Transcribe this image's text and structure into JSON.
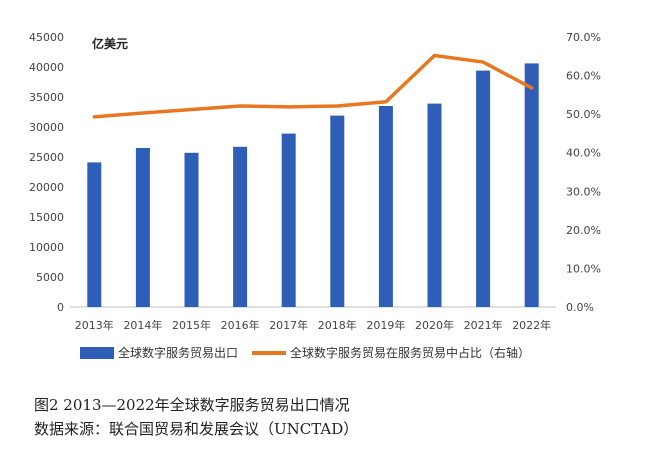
{
  "chart_data": {
    "type": "bar",
    "unit_label": "亿美元",
    "categories": [
      "2013年",
      "2014年",
      "2015年",
      "2016年",
      "2017年",
      "2018年",
      "2019年",
      "2020年",
      "2021年",
      "2022年"
    ],
    "series": [
      {
        "name": "全球数字服务贸易出口",
        "type": "bar",
        "axis": "left",
        "color": "#2E5EB8",
        "values": [
          24100,
          26500,
          25700,
          26700,
          28900,
          31900,
          33500,
          33900,
          39400,
          40600
        ]
      },
      {
        "name": "全球数字服务贸易在服务贸易中占比（右轴）",
        "type": "line",
        "axis": "right",
        "color": "#E87722",
        "values": [
          49.3,
          50.3,
          51.2,
          52.1,
          51.9,
          52.1,
          53.2,
          65.2,
          63.5,
          56.8
        ]
      }
    ],
    "y_left": {
      "range": [
        0,
        45000
      ],
      "ticks": [
        "0",
        "5000",
        "10000",
        "15000",
        "20000",
        "25000",
        "30000",
        "35000",
        "40000",
        "45000"
      ]
    },
    "y_right": {
      "range": [
        0,
        70
      ],
      "ticks": [
        "0.0%",
        "10.0%",
        "20.0%",
        "30.0%",
        "40.0%",
        "50.0%",
        "60.0%",
        "70.0%"
      ]
    },
    "grid": false,
    "legend_position": "bottom"
  },
  "caption": {
    "title": "图2   2013—2022年全球数字服务贸易出口情况",
    "source": "数据来源：联合国贸易和发展会议（UNCTAD）"
  }
}
